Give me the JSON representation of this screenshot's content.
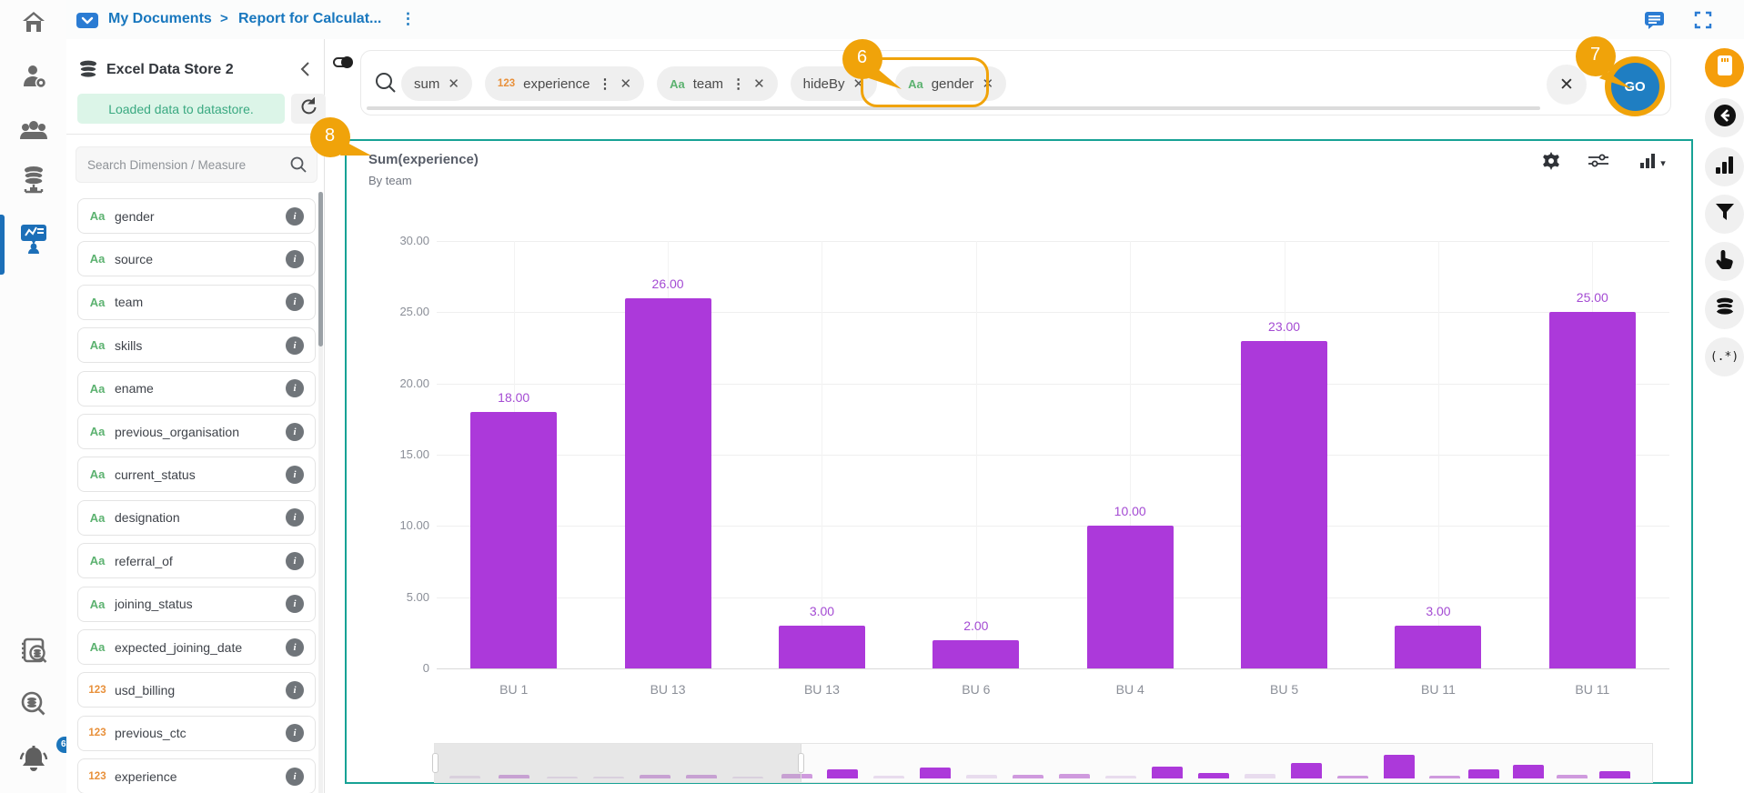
{
  "topbar": {
    "breadcrumb": {
      "root": "My Documents",
      "separator": ">",
      "current": "Report for Calculat...",
      "more": "⋮"
    }
  },
  "left_rail": {
    "items": [
      "home",
      "user-settings",
      "people",
      "data-server",
      "report-builder"
    ],
    "bottom_items": [
      "catalog-search",
      "data-search",
      "notifications"
    ],
    "active_item": "report-builder",
    "notification_count": "63"
  },
  "datastore_panel": {
    "title": "Excel Data Store 2",
    "status_message": "Loaded data to datastore.",
    "search_placeholder": "Search Dimension / Measure",
    "fields": [
      {
        "type": "Aa",
        "name": "gender"
      },
      {
        "type": "Aa",
        "name": "source"
      },
      {
        "type": "Aa",
        "name": "team"
      },
      {
        "type": "Aa",
        "name": "skills"
      },
      {
        "type": "Aa",
        "name": "ename"
      },
      {
        "type": "Aa",
        "name": "previous_organisation"
      },
      {
        "type": "Aa",
        "name": "current_status"
      },
      {
        "type": "Aa",
        "name": "designation"
      },
      {
        "type": "Aa",
        "name": "referral_of"
      },
      {
        "type": "Aa",
        "name": "joining_status"
      },
      {
        "type": "Aa",
        "name": "expected_joining_date"
      },
      {
        "type": "123",
        "name": "usd_billing"
      },
      {
        "type": "123",
        "name": "previous_ctc"
      },
      {
        "type": "123",
        "name": "experience"
      }
    ]
  },
  "query_bar": {
    "chips": [
      {
        "label": "sum",
        "type": "",
        "menu": false,
        "highlighted": false
      },
      {
        "label": "experience",
        "type": "123",
        "menu": true,
        "highlighted": false
      },
      {
        "label": "team",
        "type": "Aa",
        "menu": true,
        "highlighted": false
      },
      {
        "label": "hideBy",
        "type": "",
        "menu": false,
        "highlighted": false
      },
      {
        "label": "gender",
        "type": "Aa",
        "menu": false,
        "highlighted": true
      }
    ],
    "clear_label": "✕",
    "go_label": "GO"
  },
  "overlay_badges": {
    "on_gender_chip": "6",
    "on_go_button": "7",
    "on_chart_panel": "8"
  },
  "right_rail": {
    "items": [
      "note-card",
      "back-arrow",
      "bar-chart",
      "filter",
      "pointer-hand",
      "database",
      "regex"
    ],
    "regex_label": "(.*)"
  },
  "chart_data": {
    "type": "bar",
    "title": "Sum(experience)",
    "subtitle": "By team",
    "categories": [
      "BU 1",
      "BU 13",
      "BU 13",
      "BU 6",
      "BU 4",
      "BU 5",
      "BU 11",
      "BU 11"
    ],
    "values": [
      18,
      26,
      3,
      2,
      10,
      23,
      3,
      25
    ],
    "value_labels": [
      "18.00",
      "26.00",
      "3.00",
      "2.00",
      "10.00",
      "23.00",
      "3.00",
      "25.00"
    ],
    "y_ticks": [
      30,
      25,
      20,
      15,
      10,
      5,
      0
    ],
    "y_tick_labels": [
      "30.00",
      "25.00",
      "20.00",
      "15.00",
      "10.00",
      "5.00",
      "0"
    ],
    "ylim": [
      0,
      30
    ],
    "grid": true,
    "legend": false,
    "bar_color": "#ac39da",
    "label_color": "#a44bd3",
    "minimap": {
      "selected_fraction": 0.301,
      "bars": [
        {
          "x": 0.012,
          "h": 3,
          "t": "f"
        },
        {
          "x": 0.052,
          "h": 4,
          "t": "m"
        },
        {
          "x": 0.092,
          "h": 2,
          "t": "f"
        },
        {
          "x": 0.13,
          "h": 2,
          "t": "f"
        },
        {
          "x": 0.168,
          "h": 4,
          "t": "m"
        },
        {
          "x": 0.206,
          "h": 4,
          "t": "m"
        },
        {
          "x": 0.244,
          "h": 2,
          "t": "f"
        },
        {
          "x": 0.284,
          "h": 5,
          "t": "m"
        },
        {
          "x": 0.322,
          "h": 10,
          "t": "s"
        },
        {
          "x": 0.36,
          "h": 3,
          "t": "f"
        },
        {
          "x": 0.398,
          "h": 12,
          "t": "s"
        },
        {
          "x": 0.436,
          "h": 4,
          "t": "f"
        },
        {
          "x": 0.474,
          "h": 4,
          "t": "m"
        },
        {
          "x": 0.512,
          "h": 5,
          "t": "m"
        },
        {
          "x": 0.55,
          "h": 3,
          "t": "f"
        },
        {
          "x": 0.588,
          "h": 13,
          "t": "s"
        },
        {
          "x": 0.626,
          "h": 6,
          "t": "s"
        },
        {
          "x": 0.664,
          "h": 5,
          "t": "f"
        },
        {
          "x": 0.702,
          "h": 17,
          "t": "s"
        },
        {
          "x": 0.74,
          "h": 3,
          "t": "m"
        },
        {
          "x": 0.778,
          "h": 26,
          "t": "s"
        },
        {
          "x": 0.816,
          "h": 3,
          "t": "m"
        },
        {
          "x": 0.848,
          "h": 10,
          "t": "s"
        },
        {
          "x": 0.884,
          "h": 15,
          "t": "s"
        },
        {
          "x": 0.92,
          "h": 4,
          "t": "m"
        },
        {
          "x": 0.955,
          "h": 8,
          "t": "s"
        }
      ]
    }
  },
  "colors": {
    "accent_orange": "#f0a30a",
    "go_blue": "#1f7ec2",
    "link_blue": "#1877be",
    "panel_teal_border": "#17a295",
    "bar_purple": "#ac39da",
    "status_green": "#3aa981",
    "type_green": "#5cb270",
    "type_orange": "#e8903a"
  }
}
